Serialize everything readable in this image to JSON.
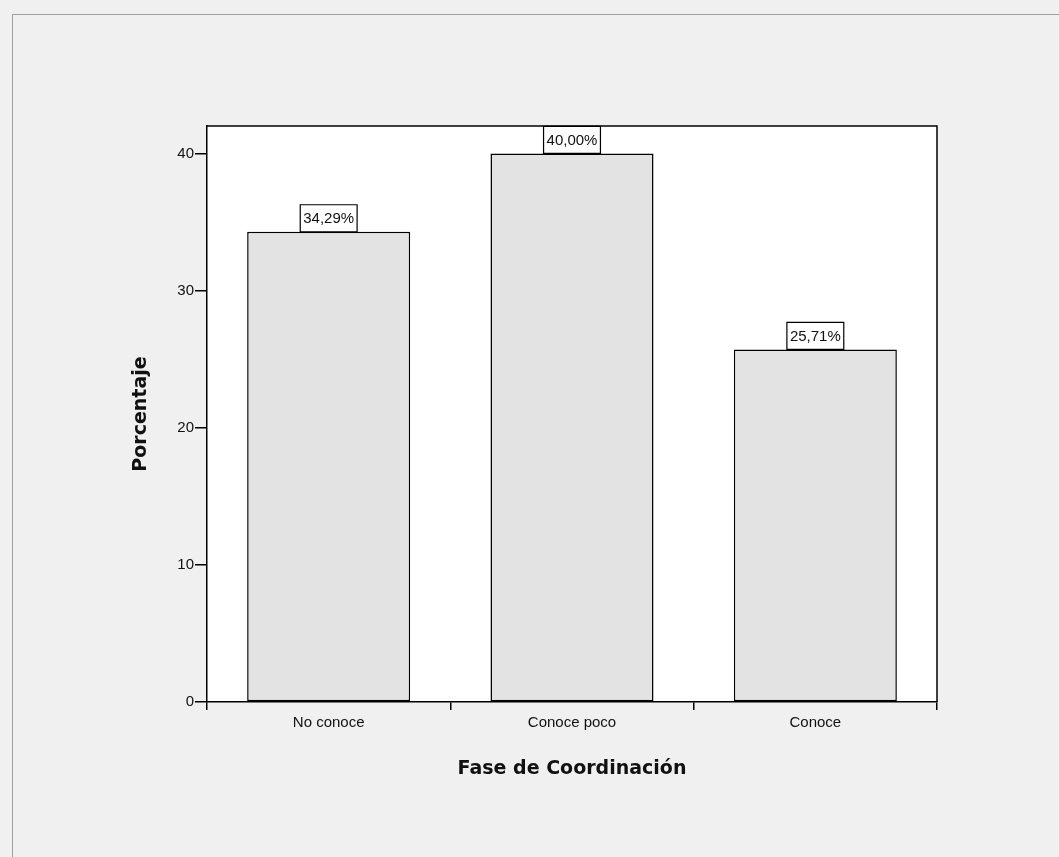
{
  "chart_data": {
    "type": "bar",
    "xlabel": "Fase de Coordinación",
    "ylabel": "Porcentaje",
    "categories": [
      "No conoce",
      "Conoce poco",
      "Conoce"
    ],
    "values": [
      34.29,
      40.0,
      25.71
    ],
    "value_labels": [
      "34,29%",
      "40,00%",
      "25,71%"
    ],
    "color": "#e3e3e3",
    "ylim": [
      0,
      42
    ],
    "yticks": [
      0,
      10,
      20,
      30,
      40
    ]
  }
}
